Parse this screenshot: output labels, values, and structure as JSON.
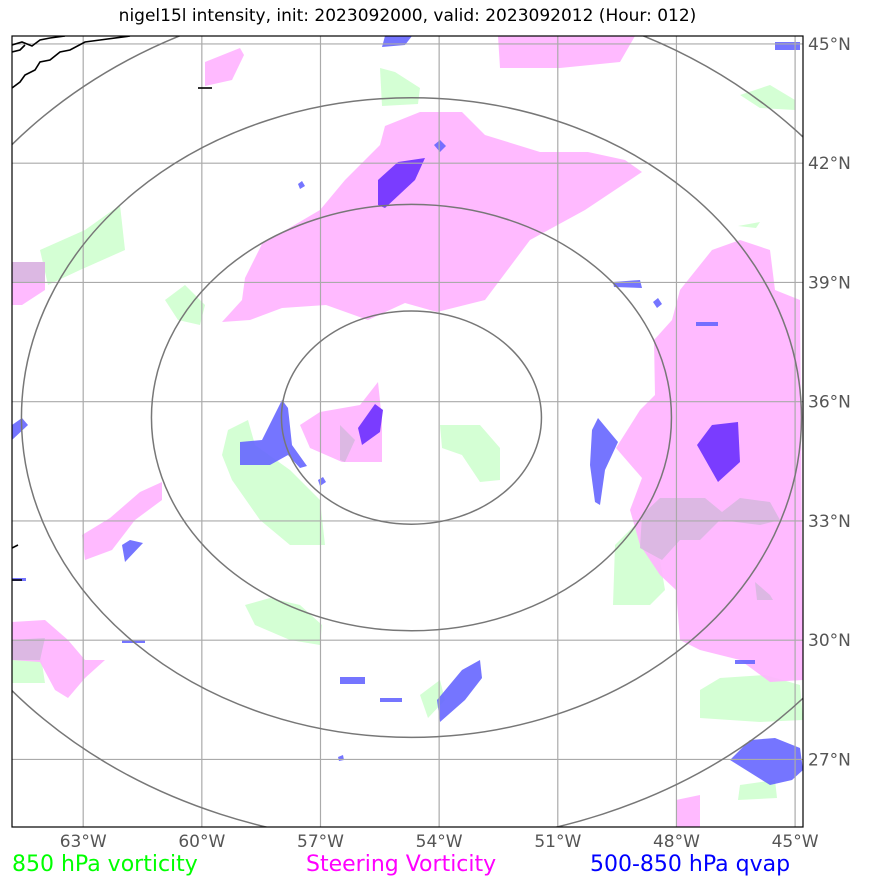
{
  "title": "nigel15l intensity, init: 2023092000, valid: 2023092012 (Hour: 012)",
  "lon_ticks": [
    "63°W",
    "60°W",
    "57°W",
    "54°W",
    "51°W",
    "48°W",
    "45°W"
  ],
  "lat_ticks": [
    "45°N",
    "42°N",
    "39°N",
    "36°N",
    "33°N",
    "30°N",
    "27°N"
  ],
  "legend": {
    "vort850": {
      "label": "850 hPa vorticity",
      "color": "#00ff00"
    },
    "steering": {
      "label": "Steering Vorticity",
      "color": "#ff00ff"
    },
    "qvap": {
      "label": "500-850 hPa qvap",
      "color": "#0000ff"
    }
  },
  "colors": {
    "vort850_fill": "#ccffcc",
    "steering_fill": "#ffb3ff",
    "qvap_fill": "#6666ff",
    "qvap_strong": "#7a3cff",
    "range_rings": "#777777",
    "grid": "#aaaaaa",
    "coast": "#000000"
  },
  "map": {
    "lon_range": [
      -64.8,
      -44.8
    ],
    "lat_range": [
      25.3,
      45.2
    ],
    "storm_center": {
      "lat": 35.6,
      "lon": -54.7
    },
    "range_rings": 4
  }
}
